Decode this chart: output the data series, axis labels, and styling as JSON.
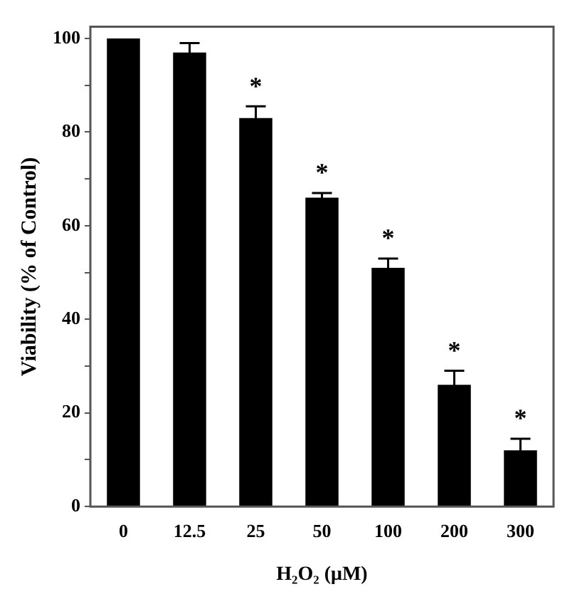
{
  "chart_data": {
    "type": "bar",
    "xlabel": "H₂O₂ (μM)",
    "ylabel": "Viability (% of Control)",
    "categories": [
      "0",
      "12.5",
      "25",
      "50",
      "100",
      "200",
      "300"
    ],
    "values": [
      100,
      97,
      83,
      66,
      51,
      26,
      12
    ],
    "errors": [
      null,
      2,
      2.5,
      1,
      2,
      3,
      2.5
    ],
    "color": "#000000",
    "ylim": [
      0,
      102.5
    ],
    "yticks": [
      0,
      {
        "value": 10,
        "label": null
      },
      20,
      {
        "value": 30,
        "label": null
      },
      40,
      {
        "value": 50,
        "label": null
      },
      60,
      {
        "value": 70,
        "label": null
      },
      80,
      {
        "value": 90,
        "label": null
      },
      100
    ],
    "annotations": [
      {
        "text": "*",
        "x": "25",
        "y": 85.5
      },
      {
        "text": "*",
        "x": "50",
        "y": 67
      },
      {
        "text": "*",
        "x": "100",
        "y": 53
      },
      {
        "text": "*",
        "x": "200",
        "y": 29
      },
      {
        "text": "*",
        "x": "300",
        "y": 14.5
      }
    ],
    "grid": false,
    "legend": false
  }
}
